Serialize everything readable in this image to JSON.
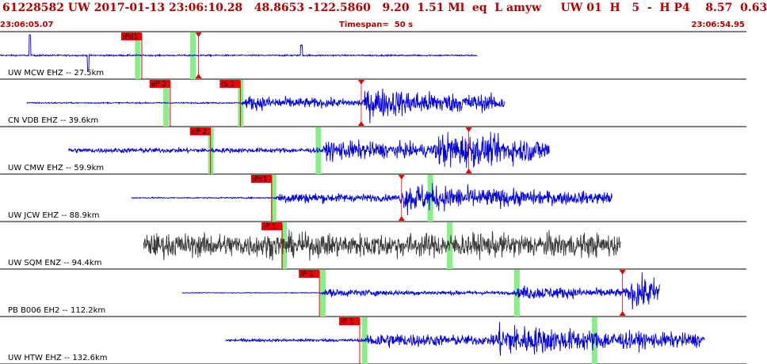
{
  "header": {
    "event_line": "61228582 UW 2017-01-13 23:06:10.28   48.8653 -122.5860   9.20  1.51 Ml  eq  L amyw     UW 01  H   5  -  H P4    8.57  0.63",
    "start_time": "23:06:05.07",
    "timespan": "Timespan=  50 s",
    "end_time": "23:06:54.95"
  },
  "colors": {
    "title": "#b00000",
    "trace_default": "#0000dd",
    "trace_selected": "#3a3a3a",
    "pick_flag": "#ee0000",
    "pick_band": "#88ee88",
    "separator": "#000000"
  },
  "channels": [
    {
      "label": "UW MCW EHZ -- 27.5km",
      "color": "blue",
      "trace": {
        "start_s": 0.0,
        "end_s": 32.0,
        "noise": 0.06,
        "spikes": [
          [
            2.0,
            1.0
          ],
          [
            5.9,
            -0.7
          ],
          [
            20.2,
            0.5
          ]
        ],
        "arrivals": []
      },
      "picks": [
        {
          "label": "iPd1",
          "t": 9.5
        }
      ],
      "bands": [
        9.2,
        12.9
      ],
      "markers": [
        13.3
      ]
    },
    {
      "label": "CN VDB EHZ -- 39.6km",
      "color": "blue",
      "trace": {
        "start_s": 1.8,
        "end_s": 33.8,
        "noise": 0.05,
        "spikes": [],
        "arrivals": [
          [
            16.1,
            0.55
          ],
          [
            24.2,
            1.0
          ]
        ]
      },
      "picks": [
        {
          "label": "eP 2",
          "t": 11.4
        },
        {
          "label": "iS 1",
          "t": 16.1
        }
      ],
      "bands": [
        11.1,
        16.1
      ],
      "markers": [
        24.2
      ]
    },
    {
      "label": "UW CMW EHZ -- 59.9km",
      "color": "blue",
      "trace": {
        "start_s": 4.6,
        "end_s": 36.8,
        "noise": 0.2,
        "spikes": [],
        "arrivals": [
          [
            21.5,
            0.65
          ],
          [
            29.0,
            1.0
          ]
        ]
      },
      "picks": [
        {
          "label": "eP 2",
          "t": 14.1
        }
      ],
      "bands": [
        14.1,
        21.3
      ],
      "markers": [
        31.4
      ]
    },
    {
      "label": "UW JCW EHZ -- 88.9km",
      "color": "blue",
      "trace": {
        "start_s": 8.8,
        "end_s": 41.0,
        "noise": 0.05,
        "spikes": [],
        "arrivals": [
          [
            18.3,
            0.45
          ],
          [
            26.7,
            1.0
          ]
        ]
      },
      "picks": [
        {
          "label": "iPc1",
          "t": 18.2
        }
      ],
      "bands": [
        18.3,
        28.8
      ],
      "markers": [
        26.9
      ]
    },
    {
      "label": "UW SQM ENZ -- 94.4km",
      "color": "gray",
      "trace": {
        "start_s": 9.6,
        "end_s": 41.6,
        "noise": 0.95,
        "spikes": [],
        "arrivals": []
      },
      "picks": [
        {
          "label": "iP 1",
          "t": 18.9
        }
      ],
      "bands": [
        19.0,
        30.1
      ],
      "markers": []
    },
    {
      "label": "PB B006 EH2 -- 112.2km",
      "color": "blue",
      "trace": {
        "start_s": 12.2,
        "end_s": 44.2,
        "noise": 0.03,
        "spikes": [],
        "arrivals": [
          [
            21.4,
            0.3
          ],
          [
            34.4,
            0.45
          ],
          [
            41.9,
            1.0
          ]
        ]
      },
      "picks": [
        {
          "label": "iP 1",
          "t": 21.4
        }
      ],
      "bands": [
        21.6,
        34.6
      ],
      "markers": [
        41.7
      ]
    },
    {
      "label": "UW HTW EHZ -- 132.6km",
      "color": "blue",
      "trace": {
        "start_s": 15.1,
        "end_s": 47.2,
        "noise": 0.12,
        "spikes": [],
        "arrivals": [
          [
            24.4,
            0.55
          ],
          [
            32.9,
            1.0
          ]
        ]
      },
      "picks": [
        {
          "label": "iP 1",
          "t": 24.1
        }
      ],
      "bands": [
        24.4,
        39.8
      ],
      "markers": []
    }
  ]
}
